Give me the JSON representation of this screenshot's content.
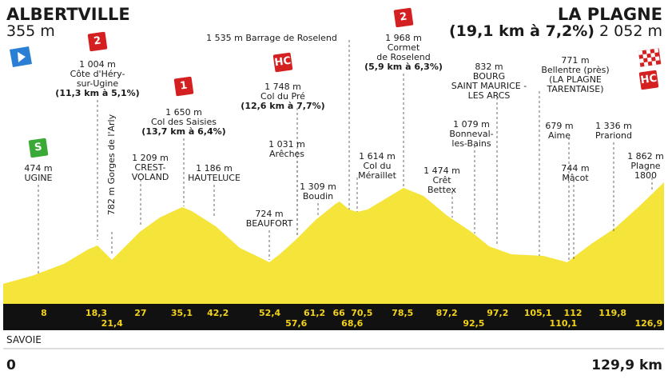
{
  "header": {
    "start": "ALBERTVILLE",
    "start_altitude": "355 m",
    "finish": "LA PLAGNE",
    "finish_climb": "(19,1 km à 7,2%)",
    "finish_altitude": "2 052 m"
  },
  "badges": [
    "S",
    "2",
    "1",
    "HC",
    "2",
    "HC"
  ],
  "waypoints": [
    {
      "lines": [
        "474 m",
        "UGINE"
      ]
    },
    {
      "lines": [
        "1 004 m",
        "Côte d'Héry-",
        "sur-Ugine"
      ],
      "detail": "(11,3 km à 5,1%)"
    },
    {
      "lines": [
        "782 m Gorges de l'Arly"
      ]
    },
    {
      "lines": [
        "1 209 m",
        "CREST-",
        "VOLAND"
      ]
    },
    {
      "lines": [
        "1 650 m",
        "Col des Saisies"
      ],
      "detail": "(13,7 km à 6,4%)"
    },
    {
      "lines": [
        "1 186 m",
        "HAUTELUCE"
      ]
    },
    {
      "lines": [
        "724 m",
        "BEAUFORT"
      ]
    },
    {
      "lines": [
        "1 748 m",
        "Col du Pré"
      ],
      "detail": "(12,6 km à 7,7%)"
    },
    {
      "lines": [
        "1 031 m",
        "Arêches"
      ]
    },
    {
      "lines": [
        "1 309 m",
        "Boudin"
      ]
    },
    {
      "lines": [
        "1 535 m Barrage de Roselend"
      ]
    },
    {
      "lines": [
        "1 968 m",
        "Cormet",
        "de Roselend"
      ],
      "detail": "(5,9 km à 6,3%)"
    },
    {
      "lines": [
        "1 614 m",
        "Col du",
        "Méraillet"
      ]
    },
    {
      "lines": [
        "1 474 m",
        "Crêt",
        "Bettex"
      ]
    },
    {
      "lines": [
        "1 079 m",
        "Bonneval-",
        "les-Bains"
      ]
    },
    {
      "lines": [
        "832 m",
        "BOURG",
        "SAINT MAURICE -",
        "LES ARCS"
      ]
    },
    {
      "lines": [
        "771 m",
        "Bellentre (près)",
        "(LA PLAGNE",
        "TARENTAISE)"
      ]
    },
    {
      "lines": [
        "679 m",
        "Aime"
      ]
    },
    {
      "lines": [
        "1 336 m",
        "Prariond"
      ]
    },
    {
      "lines": [
        "744 m",
        "Mâcot"
      ]
    },
    {
      "lines": [
        "1 862 m",
        "Plagne",
        "1800"
      ]
    }
  ],
  "km_markers_upper": [
    "8",
    "18,3",
    "27",
    "35,1",
    "42,2",
    "52,4",
    "61,2",
    "66",
    "70,5",
    "78,5",
    "87,2",
    "97,2",
    "105,1",
    "112",
    "119,8"
  ],
  "km_markers_lower": [
    "21,4",
    "57,6",
    "68,6",
    "92,5",
    "110,1",
    "126,9"
  ],
  "footer": {
    "region": "SAVOIE",
    "start_km": "0",
    "end_km": "129,9 km"
  }
}
